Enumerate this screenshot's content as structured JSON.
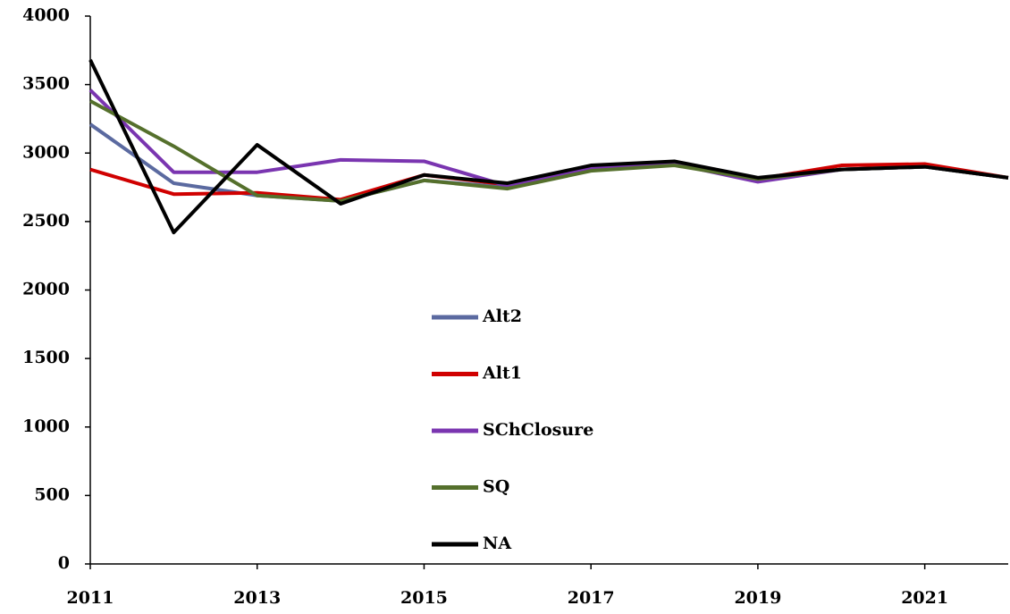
{
  "chart_data": {
    "type": "line",
    "x": [
      2011,
      2012,
      2013,
      2014,
      2015,
      2016,
      2017,
      2018,
      2019,
      2020,
      2021,
      2022
    ],
    "series": [
      {
        "name": "Alt2",
        "color": "#5b6aa0",
        "values": [
          3210,
          2780,
          2690,
          2650,
          2800,
          2750,
          2880,
          2920,
          2800,
          2880,
          2900,
          2820
        ]
      },
      {
        "name": "Alt1",
        "color": "#d00000",
        "values": [
          2880,
          2700,
          2710,
          2660,
          2840,
          2770,
          2900,
          2930,
          2810,
          2910,
          2920,
          2820
        ]
      },
      {
        "name": "SChClosure",
        "color": "#7a35b0",
        "values": [
          3460,
          2860,
          2860,
          2950,
          2940,
          2760,
          2890,
          2920,
          2790,
          2880,
          2900,
          2820
        ]
      },
      {
        "name": "SQ",
        "color": "#55702c",
        "values": [
          3380,
          3050,
          2690,
          2650,
          2800,
          2740,
          2870,
          2910,
          2810,
          2880,
          2900,
          2820
        ]
      },
      {
        "name": "NA",
        "color": "#000000",
        "values": [
          3680,
          2420,
          3060,
          2630,
          2840,
          2780,
          2910,
          2940,
          2820,
          2880,
          2900,
          2820
        ]
      }
    ],
    "xlim": [
      2011,
      2022
    ],
    "xticks": [
      2011,
      2013,
      2015,
      2017,
      2019,
      2021
    ],
    "ylim": [
      0,
      4000
    ],
    "yticks": [
      0,
      500,
      1000,
      1500,
      2000,
      2500,
      3000,
      3500,
      4000
    ],
    "grid": false
  }
}
